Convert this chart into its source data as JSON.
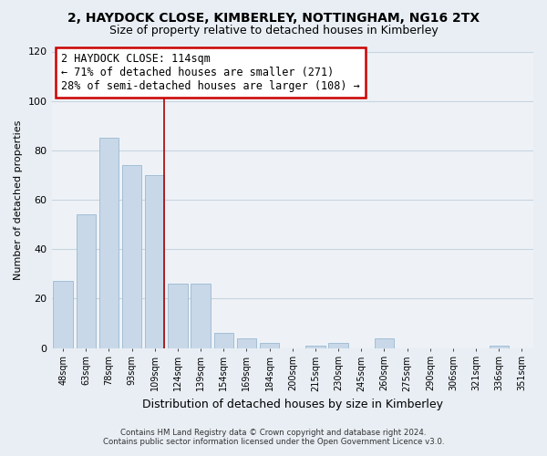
{
  "title": "2, HAYDOCK CLOSE, KIMBERLEY, NOTTINGHAM, NG16 2TX",
  "subtitle": "Size of property relative to detached houses in Kimberley",
  "xlabel": "Distribution of detached houses by size in Kimberley",
  "ylabel": "Number of detached properties",
  "bar_color": "#c8d8e8",
  "bar_edge_color": "#9ab8d0",
  "vline_color": "#aa0000",
  "annotation_line1": "2 HAYDOCK CLOSE: 114sqm",
  "annotation_line2": "← 71% of detached houses are smaller (271)",
  "annotation_line3": "28% of semi-detached houses are larger (108) →",
  "annotation_fontsize": 8.5,
  "categories": [
    "48sqm",
    "63sqm",
    "78sqm",
    "93sqm",
    "109sqm",
    "124sqm",
    "139sqm",
    "154sqm",
    "169sqm",
    "184sqm",
    "200sqm",
    "215sqm",
    "230sqm",
    "245sqm",
    "260sqm",
    "275sqm",
    "290sqm",
    "306sqm",
    "321sqm",
    "336sqm",
    "351sqm"
  ],
  "values": [
    27,
    54,
    85,
    74,
    70,
    26,
    26,
    6,
    4,
    2,
    0,
    1,
    2,
    0,
    4,
    0,
    0,
    0,
    0,
    1,
    0
  ],
  "ylim": [
    0,
    120
  ],
  "yticks": [
    0,
    20,
    40,
    60,
    80,
    100,
    120
  ],
  "footer_line1": "Contains HM Land Registry data © Crown copyright and database right 2024.",
  "footer_line2": "Contains public sector information licensed under the Open Government Licence v3.0.",
  "bg_color": "#e8eef4",
  "plot_bg_color": "#eef2f7",
  "grid_color": "#c8d4e0",
  "title_fontsize": 10,
  "subtitle_fontsize": 9,
  "ylabel_fontsize": 8,
  "xlabel_fontsize": 9
}
